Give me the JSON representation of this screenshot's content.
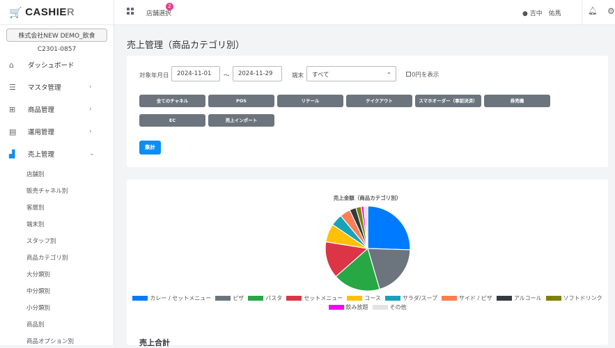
{
  "sidebar": {
    "logo_main": "CASHIE",
    "logo_end": "R",
    "company": "株式会社NEW DEMO_飲食",
    "code": "C2301-0857",
    "items": [
      {
        "label": "ダッシュボード",
        "icon": "home-icon"
      },
      {
        "label": "マスタ管理",
        "icon": "database-icon"
      },
      {
        "label": "商品管理",
        "icon": "gift-icon"
      },
      {
        "label": "運用管理",
        "icon": "document-icon"
      },
      {
        "label": "売上管理",
        "icon": "bar-chart-icon"
      }
    ],
    "sub_items": [
      "店舗別",
      "販売チャネル別",
      "客層別",
      "端末別",
      "スタッフ別",
      "商品カテゴリ別",
      "大分類別",
      "中分類別",
      "小分類別",
      "商品別",
      "商品オプション別"
    ]
  },
  "header": {
    "store_select": "店舗選択",
    "badge": "2",
    "user": "● 吉中　佑馬"
  },
  "page": {
    "title": "売上管理（商品カテゴリ別）"
  },
  "filters": {
    "date_label": "対象年月日",
    "date_from": "2024-11-01",
    "tilde": "～",
    "date_to": "2024-11-29",
    "terminal_label": "端末",
    "terminal_value": "すべて",
    "show_zero": "0円を表示",
    "show_zero_checked": false,
    "channels": [
      "全てのチャネル",
      "POS",
      "リテール",
      "テイクアウト",
      "スマホオーダー（事前決済）",
      "券売機",
      "EC",
      "売上インポート"
    ],
    "aggregate": "集計"
  },
  "chart_data": {
    "type": "pie",
    "title": "売上金額（商品カテゴリ別）",
    "unit": "percent of total (estimated)",
    "categories": [
      "カレー / セットメニュー",
      "ピザ",
      "パスタ",
      "セットメニュー",
      "コース",
      "サラダ/スープ",
      "サイド / ピザ",
      "アルコール",
      "ソフトドリンク",
      "飲み放題",
      "その他"
    ],
    "values": [
      25.5,
      20,
      18,
      14,
      7,
      4.5,
      4,
      2.5,
      2,
      1,
      1.5
    ],
    "colors": [
      "#007bff",
      "#6c757d",
      "#28a745",
      "#dc3545",
      "#ffc107",
      "#17a2b8",
      "#fd7e54",
      "#343a40",
      "#808000",
      "#ff00ff",
      "#e3e3e3"
    ],
    "legend": "bottom"
  },
  "summary": {
    "title": "売上合計"
  }
}
